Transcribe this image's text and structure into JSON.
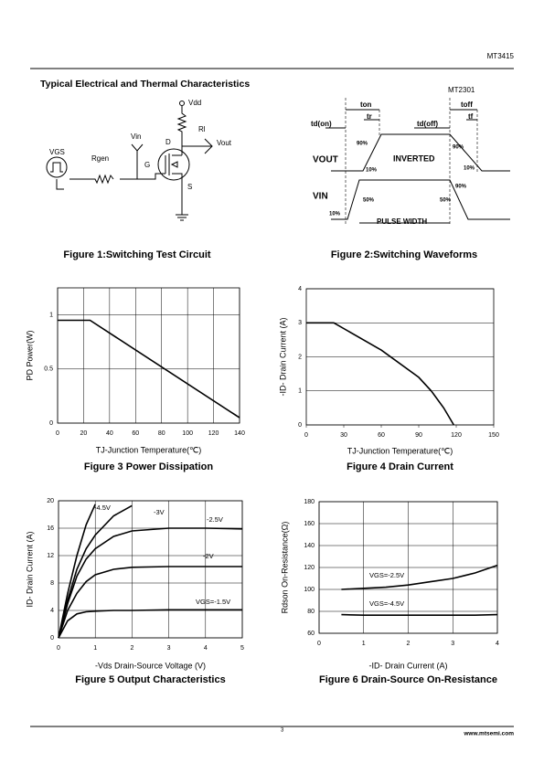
{
  "header": {
    "part": "MT3415"
  },
  "section_title": "Typical Electrical and Thermal Characteristics",
  "circuit": {
    "labels": [
      "Vdd",
      "Rl",
      "Vin",
      "D",
      "Vout",
      "VGS",
      "Rgen",
      "G",
      "S"
    ],
    "caption": "Figure 1:Switching Test Circuit"
  },
  "waveforms": {
    "part": "MT2301",
    "labels": [
      "ton",
      "tr",
      "td(on)",
      "td(off)",
      "toff",
      "tf",
      "90%",
      "90%",
      "INVERTED",
      "VOUT",
      "10%",
      "10%",
      "VIN",
      "90%",
      "50%",
      "50%",
      "10%",
      "PULSE WIDTH"
    ],
    "caption": "Figure 2:Switching Waveforms"
  },
  "chart_data": [
    {
      "type": "line",
      "title": "Figure 3 Power Dissipation",
      "xlabel": "TJ-Junction Temperature(℃)",
      "ylabel": "PD Power(W)",
      "x": [
        0,
        25,
        140
      ],
      "series": [
        {
          "color": "#000000",
          "values": [
            0.95,
            0.95,
            0.05
          ]
        }
      ],
      "xlim": [
        0,
        140
      ],
      "xticks": [
        0,
        20,
        40,
        60,
        80,
        100,
        120,
        140
      ],
      "ylim": [
        0,
        1.25
      ],
      "yticks": [
        0,
        0.5,
        1
      ],
      "grid": "both"
    },
    {
      "type": "line",
      "title": "Figure 4 Drain Current",
      "xlabel": "TJ-Junction Temperature(℃)",
      "ylabel": "-ID- Drain Current (A)",
      "x": [
        0,
        22,
        60,
        90,
        100,
        110,
        118
      ],
      "series": [
        {
          "color": "#000000",
          "values": [
            3,
            3,
            2.2,
            1.4,
            1.0,
            0.5,
            0
          ]
        }
      ],
      "xlim": [
        0,
        150
      ],
      "xticks": [
        0,
        30,
        60,
        90,
        120,
        150
      ],
      "ylim": [
        0,
        4
      ],
      "yticks": [
        0,
        1,
        2,
        3,
        4
      ],
      "grid": "y"
    },
    {
      "type": "line",
      "title": "Figure 5 Output Characteristics",
      "xlabel": "-Vds Drain-Source Voltage (V)",
      "ylabel": "ID- Drain Current (A)",
      "x": [
        0,
        0.25,
        0.5,
        0.75,
        1,
        1.5,
        2,
        3,
        4,
        5
      ],
      "series": [
        {
          "name": "-4.5V",
          "color": "#000000",
          "values": [
            0,
            6.5,
            12,
            16.5,
            19.5,
            null,
            null,
            null,
            null,
            null
          ]
        },
        {
          "name": "-3V",
          "color": "#000000",
          "values": [
            0,
            5.5,
            10,
            13,
            15,
            17.8,
            19.3,
            null,
            null,
            null
          ]
        },
        {
          "name": "-2.5V",
          "color": "#000000",
          "values": [
            0,
            5,
            9,
            11.5,
            13,
            14.8,
            15.6,
            16,
            16,
            15.9
          ]
        },
        {
          "name": "-2V",
          "color": "#000000",
          "values": [
            0,
            4,
            6.5,
            8.2,
            9.2,
            10,
            10.3,
            10.4,
            10.4,
            10.4
          ]
        },
        {
          "name": "VGS=-1.5V",
          "color": "#000000",
          "values": [
            0,
            2.5,
            3.5,
            3.8,
            3.9,
            4,
            4,
            4.1,
            4.1,
            4.1
          ]
        }
      ],
      "xlim": [
        0,
        5
      ],
      "xticks": [
        0,
        1,
        2,
        3,
        4,
        5
      ],
      "ylim": [
        0,
        20
      ],
      "yticks": [
        0,
        4,
        8,
        12,
        16,
        20
      ],
      "grid": "both"
    },
    {
      "type": "line",
      "title": "Figure 6 Drain-Source On-Resistance",
      "xlabel": "-ID- Drain Current (A)",
      "ylabel": "Rdson On-Resistance(Ω)",
      "x": [
        0.5,
        1,
        1.5,
        2,
        2.5,
        3,
        3.5,
        4
      ],
      "series": [
        {
          "name": "VGS=-2.5V",
          "color": "#000000",
          "values": [
            100,
            101,
            102,
            104,
            107,
            110,
            115,
            122
          ]
        },
        {
          "name": "VGS=-4.5V",
          "color": "#000000",
          "values": [
            77,
            76.5,
            76.5,
            76.5,
            76.5,
            76.5,
            76.5,
            77
          ]
        }
      ],
      "xlim": [
        0,
        4
      ],
      "xticks": [
        0,
        1,
        2,
        3,
        4
      ],
      "ylim": [
        60,
        180
      ],
      "yticks": [
        60,
        80,
        100,
        120,
        140,
        160,
        180
      ],
      "grid": "both"
    }
  ],
  "footer": {
    "page": "3",
    "url": "www.mtsemi.com"
  }
}
